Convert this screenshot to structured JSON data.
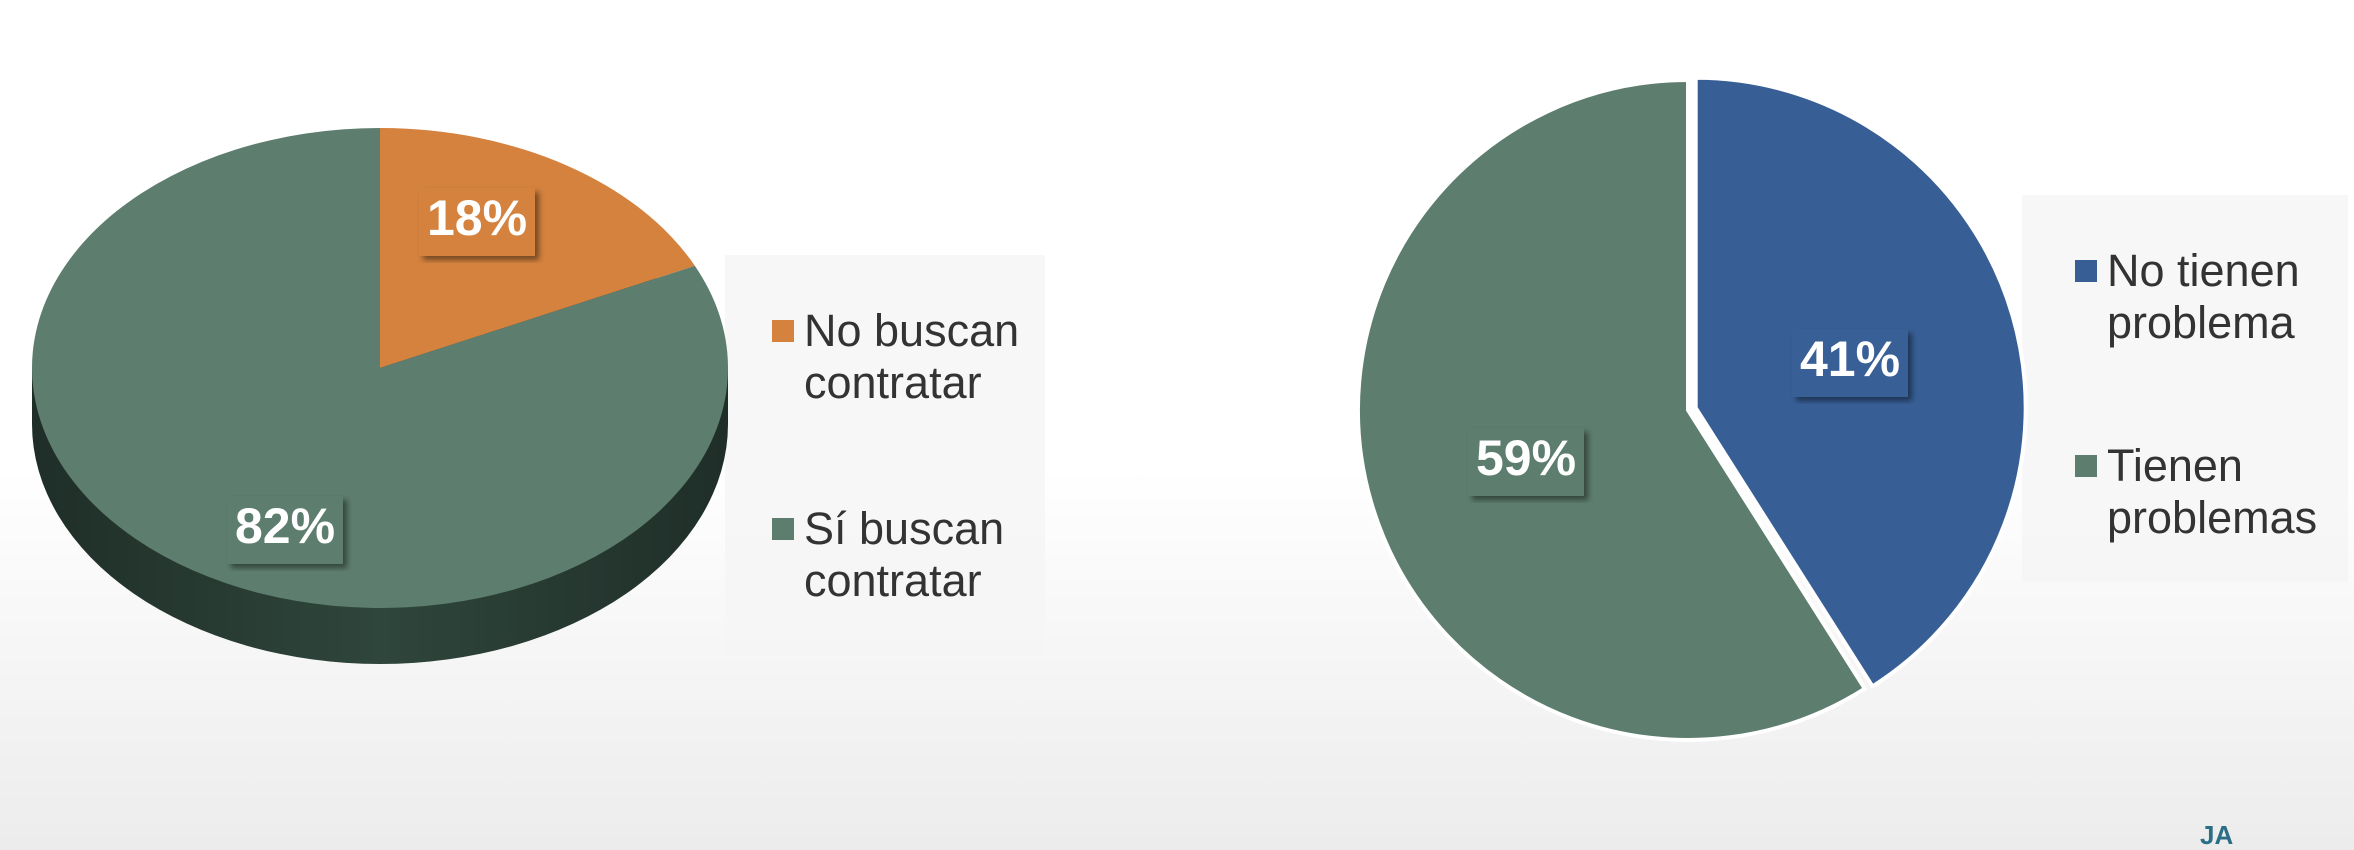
{
  "chart_data": [
    {
      "type": "pie3d",
      "categories": [
        "No buscan contratar",
        "Sí buscan contratar"
      ],
      "values": [
        18,
        82
      ],
      "value_labels": [
        "18%",
        "82%"
      ],
      "colors": [
        "#d4823e",
        "#5d7d6e"
      ]
    },
    {
      "type": "pie",
      "categories": [
        "No tienen problema",
        "Tienen problemas"
      ],
      "values": [
        41,
        59
      ],
      "value_labels": [
        "41%",
        "59%"
      ],
      "colors": [
        "#375f96",
        "#5d7d6e"
      ]
    }
  ],
  "logo": "JA"
}
